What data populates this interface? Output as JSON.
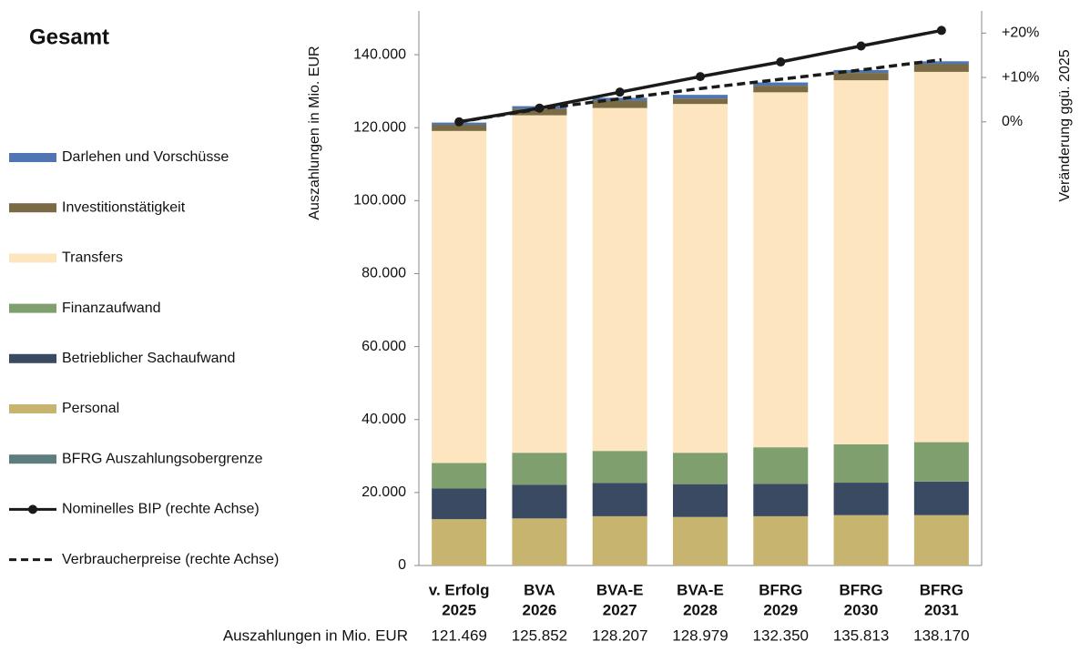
{
  "chart_data": {
    "type": "bar",
    "title": "Gesamt",
    "y_label": "Auszahlungen in Mio. EUR",
    "y2_label": "Veränderung  ggü. 2025",
    "categories": [
      [
        "v. Erfolg",
        "2025"
      ],
      [
        "BVA",
        "2026"
      ],
      [
        "BVA-E",
        "2027"
      ],
      [
        "BVA-E",
        "2028"
      ],
      [
        "BFRG",
        "2029"
      ],
      [
        "BFRG",
        "2030"
      ],
      [
        "BFRG",
        "2031"
      ]
    ],
    "stacked": true,
    "series": [
      {
        "name": "Darlehen und Vorschüsse",
        "color": "#4f76b0",
        "values": [
          600,
          700,
          800,
          1000,
          900,
          800,
          800
        ]
      },
      {
        "name": "Investitionstätigkeit",
        "color": "#7b6b45",
        "values": [
          1700,
          1800,
          2000,
          1500,
          1800,
          2000,
          2100
        ]
      },
      {
        "name": "Transfers",
        "color": "#fde5c0",
        "values": [
          91000,
          92500,
          94000,
          95600,
          97300,
          99800,
          101500
        ]
      },
      {
        "name": "Finanzaufwand",
        "color": "#7f9f6e",
        "values": [
          7000,
          8800,
          8800,
          8600,
          10000,
          10500,
          10800
        ]
      },
      {
        "name": "Betrieblicher Sachaufwand",
        "color": "#3b4a63",
        "values": [
          8400,
          9200,
          9100,
          9000,
          8900,
          8900,
          9200
        ]
      },
      {
        "name": "Personal",
        "color": "#c7b46f",
        "values": [
          12700,
          12900,
          13500,
          13300,
          13500,
          13800,
          13800
        ]
      },
      {
        "name": "BFRG Auszahlungsobergrenze",
        "color": "#5e7d7f",
        "values": [
          null,
          null,
          null,
          null,
          null,
          null,
          null
        ]
      },
      {
        "name": "Nominelles BIP (rechte Achse)",
        "color": "#1a1a1a",
        "type": "line",
        "axis": "y2",
        "dashed": false,
        "marker": true,
        "values": [
          0,
          3.1,
          6.7,
          10.2,
          13.5,
          17.1,
          20.6
        ]
      },
      {
        "name": "Verbraucherpreise (rechte Achse)",
        "color": "#1a1a1a",
        "type": "line",
        "axis": "y2",
        "dashed": true,
        "marker": false,
        "values": [
          0,
          2.9,
          5.2,
          7.5,
          9.6,
          11.7,
          14.0
        ]
      }
    ],
    "ylim": [
      0,
      152000
    ],
    "yticks": [
      0,
      {
        "value": 20000,
        "label": "20.000"
      },
      {
        "value": 40000,
        "label": "40.000"
      },
      {
        "value": 60000,
        "label": "60.000"
      },
      {
        "value": 80000,
        "label": "80.000"
      },
      {
        "value": 100000,
        "label": "100.000"
      },
      {
        "value": 120000,
        "label": "120.000"
      },
      {
        "value": 140000,
        "label": "140.000"
      }
    ],
    "y2lim": [
      -100,
      25
    ],
    "y2ticks": [
      {
        "value": 0,
        "label": "0%"
      },
      {
        "value": 10,
        "label": "+10%"
      },
      {
        "value": 20,
        "label": "+20%"
      }
    ],
    "legend": "left",
    "totals": {
      "label": "Auszahlungen in Mio. EUR",
      "values": [
        121469,
        125852,
        128207,
        128979,
        132350,
        135813,
        138170
      ],
      "value_labels": [
        "121.469",
        "125.852",
        "128.207",
        "128.979",
        "132.350",
        "135.813",
        "138.170"
      ]
    }
  }
}
